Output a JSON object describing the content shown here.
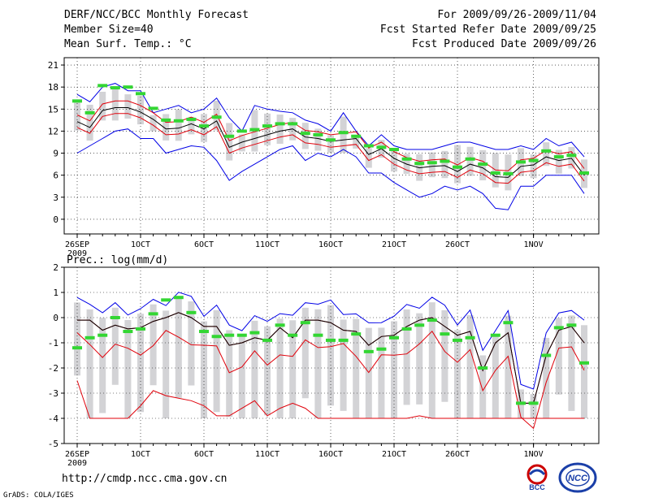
{
  "header": {
    "left": [
      "DERF/NCC/BCC Monthly Forecast",
      "Member Size=40",
      "Mean Surf. Temp.: °C"
    ],
    "right": [
      "For 2009/09/26-2009/11/04",
      "Fcst Started Refer Date 2009/09/25",
      "Fcst Produced Date 2009/09/26"
    ]
  },
  "footer": {
    "url": "http://cmdp.ncc.cma.gov.cn",
    "grads": "GrADS: COLA/IGES"
  },
  "logos": {
    "bcc": "BCC",
    "ncc": "NCC"
  },
  "colors": {
    "grid": "#000000",
    "bar": "#d3d3d6",
    "mean": "#000000",
    "inner": "#e0000a",
    "outer": "#0000e6",
    "median": "#33d633"
  },
  "chart_data": [
    {
      "type": "line",
      "title": "Mean Surf. Temp.: °C",
      "x_ticks": [
        "26SEP",
        "1OCT",
        "6OCT",
        "11OCT",
        "16OCT",
        "21OCT",
        "26OCT",
        "1NOV"
      ],
      "x_tick_index": [
        0,
        5,
        10,
        15,
        20,
        25,
        30,
        36
      ],
      "x_sublabel": "2009",
      "ylim": [
        -2,
        22
      ],
      "y_ticks": [
        0,
        3,
        6,
        9,
        12,
        15,
        18,
        21
      ],
      "series": [
        {
          "name": "max",
          "values": [
            9,
            10,
            11,
            12,
            12.3,
            11,
            11,
            9,
            9.5,
            10,
            9.8,
            8,
            5.3,
            6.5,
            7.5,
            8.5,
            9.5,
            10,
            8,
            9,
            8.5,
            9.5,
            8.5,
            6.3,
            6.3,
            5,
            4,
            3,
            3.5,
            4.5,
            4,
            4.5,
            3.5,
            1.5,
            1.3,
            4.5,
            4.5,
            6,
            6,
            6,
            3.5
          ]
        },
        {
          "name": "upper_envelope",
          "values": [
            17,
            16,
            18,
            18.5,
            17.5,
            17.5,
            14.5,
            15,
            15.5,
            14.5,
            15,
            16.5,
            13.8,
            12,
            15.5,
            15,
            14.7,
            14.5,
            13.5,
            13,
            12,
            14.5,
            12,
            10,
            11.5,
            10,
            9.5,
            9.5,
            9.5,
            10,
            10.5,
            10.5,
            10,
            9.5,
            9.5,
            10,
            9.5,
            11,
            10,
            10.5,
            8.5
          ]
        }
      ]
    },
    {
      "type": "line",
      "title": "Prec.: log(mm/d)",
      "x_ticks": [
        "26SEP",
        "1OCT",
        "6OCT",
        "11OCT",
        "16OCT",
        "21OCT",
        "26OCT",
        "1NOV"
      ],
      "x_tick_index": [
        0,
        5,
        10,
        15,
        20,
        25,
        30,
        36
      ],
      "x_sublabel": "2009",
      "ylim": [
        -5,
        2
      ],
      "y_ticks": [
        -5,
        -4,
        -3,
        -2,
        -1,
        0,
        1,
        2
      ]
    }
  ]
}
